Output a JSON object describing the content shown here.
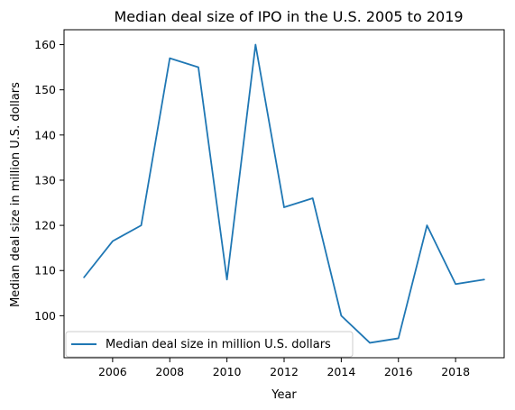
{
  "chart_data": {
    "type": "line",
    "title": "Median deal size of IPO in the U.S. 2005 to 2019",
    "xlabel": "Year",
    "ylabel": "Median deal size in million U.S. dollars",
    "x": [
      2005,
      2006,
      2007,
      2008,
      2009,
      2010,
      2011,
      2012,
      2013,
      2014,
      2015,
      2016,
      2017,
      2018,
      2019
    ],
    "series": [
      {
        "name": "Median deal size in million U.S. dollars",
        "color": "#1f77b4",
        "values": [
          108.5,
          116.5,
          120,
          157,
          155,
          108,
          160,
          124,
          126,
          100,
          94,
          95,
          120,
          107,
          108
        ]
      }
    ],
    "xlim": [
      2004.3,
      2019.7
    ],
    "ylim": [
      90.7,
      163.3
    ],
    "xticks": [
      2006,
      2008,
      2010,
      2012,
      2014,
      2016,
      2018
    ],
    "yticks": [
      100,
      110,
      120,
      130,
      140,
      150,
      160
    ],
    "legend_position": "lower-left",
    "grid": false
  }
}
